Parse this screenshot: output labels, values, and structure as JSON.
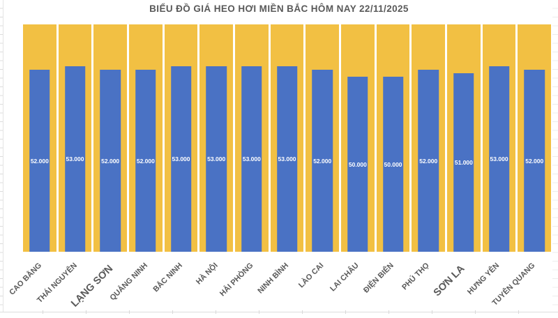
{
  "chart_data": {
    "type": "bar",
    "title": "BIỂU ĐỒ GIÁ HEO HƠI MIỀN BẮC HÔM NAY 22/11/2025",
    "categories": [
      "CAO BẰNG",
      "THÁI NGUYÊN",
      "LẠNG SƠN",
      "QUẢNG NINH",
      "BẮC NINH",
      "HÀ NỘI",
      "HẢI PHÒNG",
      "NINH BÌNH",
      "LÀO CAI",
      "LAI CHÂU",
      "ĐIỆN BIÊN",
      "PHÚ THỌ",
      "SƠN LA",
      "HƯNG YÊN",
      "TUYÊN QUANG"
    ],
    "values": [
      52000,
      53000,
      52000,
      52000,
      53000,
      53000,
      53000,
      53000,
      52000,
      50000,
      50000,
      52000,
      51000,
      53000,
      52000
    ],
    "value_labels": [
      "52.000",
      "53.000",
      "52.000",
      "52.000",
      "53.000",
      "53.000",
      "53.000",
      "53.000",
      "52.000",
      "50.000",
      "50.000",
      "52.000",
      "51.000",
      "53.000",
      "52.000"
    ],
    "ylim": [
      0,
      65000
    ],
    "xlabel": "",
    "ylabel": "",
    "legend": "none",
    "grid": false,
    "x_label_rotation": -45,
    "background_columns": true,
    "emphasized_categories": [
      "LẠNG SƠN",
      "SƠN LA"
    ],
    "colors": {
      "bar": "#4A72C4",
      "background_bar": "#F2C043",
      "title_text": "#595959",
      "axis_label_text": "#595959",
      "value_label_text": "#FFFFFF"
    }
  }
}
